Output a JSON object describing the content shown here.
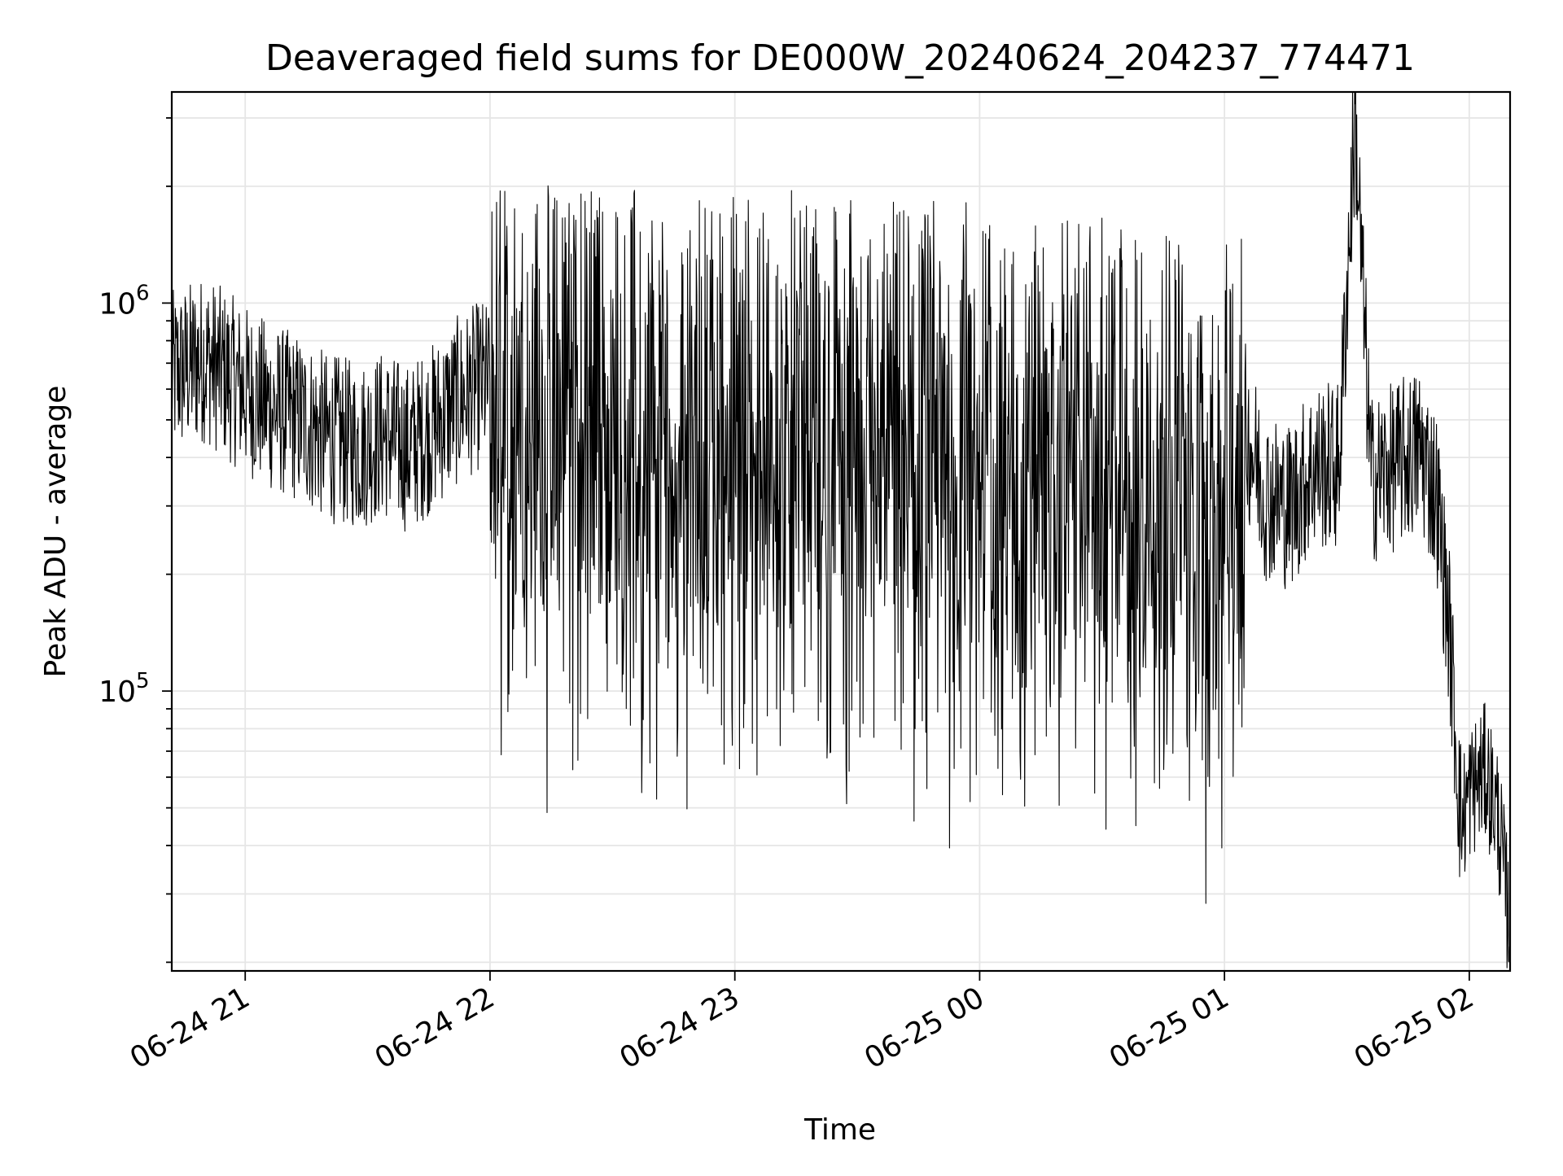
{
  "chart_data": {
    "type": "line",
    "title": "Deaveraged field sums for DE000W_20240624_204237_774471",
    "xlabel": "Time",
    "ylabel": "Peak ADU - average",
    "y_scale": "log",
    "xlim": [
      "2024-06-24 20:42",
      "2024-06-25 02:10"
    ],
    "ylim": [
      19000,
      3500000
    ],
    "grid": true,
    "line_color": "#000000",
    "grid_color": "#e6e6e6",
    "x_ticks": [
      {
        "value": "2024-06-24 21:00",
        "label": "06-24 21"
      },
      {
        "value": "2024-06-24 22:00",
        "label": "06-24 22"
      },
      {
        "value": "2024-06-24 23:00",
        "label": "06-24 23"
      },
      {
        "value": "2024-06-25 00:00",
        "label": "06-25 00"
      },
      {
        "value": "2024-06-25 01:00",
        "label": "06-25 01"
      },
      {
        "value": "2024-06-25 02:00",
        "label": "06-25 02"
      }
    ],
    "y_ticks": [
      {
        "value": 100000,
        "base": "10",
        "exp": "5"
      },
      {
        "value": 1000000,
        "base": "10",
        "exp": "6"
      }
    ],
    "series": [
      {
        "points": [
          [
            "2024-06-24 20:42",
            650000
          ],
          [
            "2024-06-24 20:50",
            720000
          ],
          [
            "2024-06-24 20:58",
            620000
          ],
          [
            "2024-06-24 21:06",
            540000
          ],
          [
            "2024-06-24 21:14",
            500000
          ],
          [
            "2024-06-24 21:20",
            450000
          ],
          [
            "2024-06-24 21:28",
            430000
          ],
          [
            "2024-06-24 21:34",
            460000
          ],
          [
            "2024-06-24 21:40",
            420000
          ],
          [
            "2024-06-24 21:46",
            480000
          ],
          [
            "2024-06-24 21:52",
            560000
          ],
          [
            "2024-06-24 21:58",
            620000
          ],
          [
            "2024-06-24 22:10",
            560000
          ],
          [
            "2024-06-24 22:25",
            600000
          ],
          [
            "2024-06-24 22:40",
            580000
          ],
          [
            "2024-06-24 22:55",
            560000
          ],
          [
            "2024-06-24 23:10",
            550000
          ],
          [
            "2024-06-24 23:25",
            560000
          ],
          [
            "2024-06-24 23:40",
            540000
          ],
          [
            "2024-06-24 23:55",
            520000
          ],
          [
            "2024-06-25 00:10",
            500000
          ],
          [
            "2024-06-25 00:25",
            480000
          ],
          [
            "2024-06-25 00:40",
            460000
          ],
          [
            "2024-06-25 00:50",
            400000
          ],
          [
            "2024-06-25 00:58",
            360000
          ],
          [
            "2024-06-25 01:05",
            480000
          ],
          [
            "2024-06-25 01:10",
            320000
          ],
          [
            "2024-06-25 01:16",
            300000
          ],
          [
            "2024-06-25 01:22",
            380000
          ],
          [
            "2024-06-25 01:28",
            380000
          ],
          [
            "2024-06-25 01:32",
            3000000
          ],
          [
            "2024-06-25 01:36",
            350000
          ],
          [
            "2024-06-25 01:42",
            380000
          ],
          [
            "2024-06-25 01:48",
            420000
          ],
          [
            "2024-06-25 01:52",
            320000
          ],
          [
            "2024-06-25 01:55",
            150000
          ],
          [
            "2024-06-25 01:58",
            45000
          ],
          [
            "2024-06-25 02:00",
            55000
          ],
          [
            "2024-06-25 02:04",
            62000
          ],
          [
            "2024-06-25 02:07",
            48000
          ],
          [
            "2024-06-25 02:10",
            24000
          ]
        ]
      }
    ]
  }
}
